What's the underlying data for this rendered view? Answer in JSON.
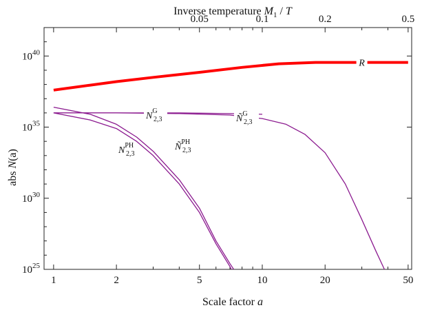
{
  "chart_data": {
    "type": "line",
    "x_scale": "log",
    "y_scale": "log",
    "xlim": [
      0.9,
      52
    ],
    "ylim_exponent": [
      25,
      42
    ],
    "x_label_bottom": "Scale factor a",
    "x_label_top": "Inverse temperature M₁ / T",
    "y_label": "abs N(a)",
    "x_ticks": [
      {
        "value": 1,
        "label": "1"
      },
      {
        "value": 2,
        "label": "2"
      },
      {
        "value": 5,
        "label": "5"
      },
      {
        "value": 10,
        "label": "10"
      },
      {
        "value": 20,
        "label": "20"
      },
      {
        "value": 50,
        "label": "50"
      }
    ],
    "x_ticks_top": [
      {
        "value": 0.05,
        "label": "0.05"
      },
      {
        "value": 0.1,
        "label": "0.1"
      },
      {
        "value": 0.2,
        "label": "0.2"
      },
      {
        "value": 0.5,
        "label": "0.5"
      }
    ],
    "y_ticks": [
      {
        "exponent": 25,
        "label": "10^25"
      },
      {
        "exponent": 30,
        "label": "10^30"
      },
      {
        "exponent": 35,
        "label": "10^35"
      },
      {
        "exponent": 40,
        "label": "10^40"
      }
    ],
    "series": [
      {
        "name": "R",
        "color": "#ff0000",
        "x": [
          1,
          1.5,
          2,
          3,
          5,
          8,
          12,
          18,
          25,
          35,
          50
        ],
        "log10_y": [
          37.6,
          37.95,
          38.2,
          38.5,
          38.85,
          39.2,
          39.45,
          39.55,
          39.55,
          39.55,
          39.55
        ]
      },
      {
        "name": "N_{2,3}^{PH}",
        "color": "#8b1a8f",
        "x": [
          1,
          1.5,
          2,
          2.5,
          3,
          4,
          5,
          6,
          7,
          7.1
        ],
        "log10_y": [
          36.0,
          35.5,
          34.9,
          34.0,
          33.0,
          31.0,
          29.0,
          26.8,
          25.2,
          25.0
        ]
      },
      {
        "name": "Ñ_{2,3}^{PH}",
        "color": "#8b1a8f",
        "x": [
          1,
          1.5,
          2,
          2.5,
          3,
          4,
          5,
          6,
          7,
          7.3
        ],
        "log10_y": [
          36.4,
          35.9,
          35.2,
          34.3,
          33.3,
          31.3,
          29.3,
          27.0,
          25.4,
          25.0
        ]
      },
      {
        "name": "N_{2,3}^{G}",
        "color": "#8b1a8f",
        "x": [
          1,
          1.5,
          2,
          3,
          4,
          5,
          7,
          10
        ],
        "log10_y": [
          36.0,
          36.0,
          36.0,
          36.0,
          36.0,
          35.98,
          35.95,
          35.9
        ]
      },
      {
        "name": "Ñ_{2,3}^{G}",
        "color": "#8b1a8f",
        "x": [
          1,
          2,
          4,
          7,
          10,
          13,
          16,
          20,
          25,
          30,
          35,
          38.5
        ],
        "log10_y": [
          36.0,
          36.0,
          35.95,
          35.85,
          35.6,
          35.2,
          34.5,
          33.2,
          31.0,
          28.5,
          26.3,
          25.0
        ]
      }
    ],
    "labels": {
      "R": "R",
      "n_g_main": "N",
      "n_g_sup": "G",
      "n_g_sub": "2,3",
      "nt_g_main": "Ñ",
      "nt_g_sup": "G",
      "nt_g_sub": "2,3",
      "n_ph_main": "N",
      "n_ph_sup": "PH",
      "n_ph_sub": "2,3",
      "nt_ph_main": "Ñ",
      "nt_ph_sup": "PH",
      "nt_ph_sub": "2,3"
    },
    "axis_text": {
      "bottom_main": "Scale factor ",
      "bottom_var": "a",
      "top_main": "Inverse temperature ",
      "top_var": "M",
      "top_sub": "1",
      "top_rest": " / ",
      "top_var2": "T",
      "left_main": "abs ",
      "left_var": "N",
      "left_rest": "(a)"
    }
  }
}
